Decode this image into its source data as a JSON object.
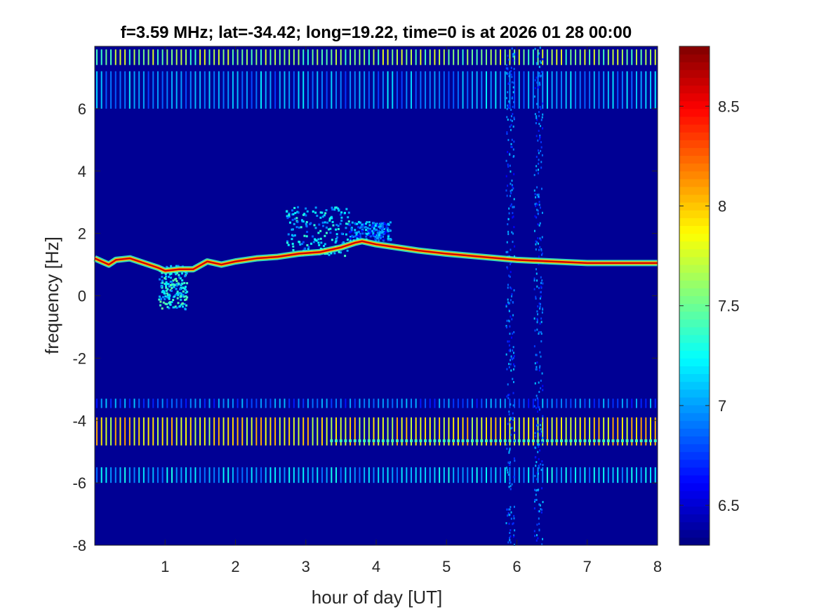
{
  "chart_data": {
    "type": "heatmap",
    "title": "f=3.59 MHz;  lat=-34.42; long=19.22, time=0 is at 2026 01 28 00:00",
    "xlabel": "hour of day [UT]",
    "ylabel": "frequency [Hz]",
    "xlim": [
      0,
      8
    ],
    "ylim": [
      -8,
      8
    ],
    "xticks": [
      1,
      2,
      3,
      4,
      5,
      6,
      7,
      8
    ],
    "xtick_labels": [
      "1",
      "2",
      "3",
      "4",
      "5",
      "6",
      "7",
      "8"
    ],
    "yticks": [
      -8,
      -6,
      -4,
      -2,
      0,
      2,
      4,
      6
    ],
    "ytick_labels": [
      "-8",
      "-6",
      "-4",
      "-2",
      "0",
      "2",
      "4",
      "6"
    ],
    "colorbar": {
      "colormap": "jet",
      "clim": [
        6.3,
        8.8
      ],
      "ticks": [
        6.5,
        7,
        7.5,
        8,
        8.5
      ],
      "tick_labels": [
        "6.5",
        "7",
        "7.5",
        "8",
        "8.5"
      ]
    },
    "background_value": 6.35,
    "main_trace": {
      "x": [
        0.0,
        0.1,
        0.2,
        0.3,
        0.5,
        0.7,
        0.9,
        1.0,
        1.2,
        1.4,
        1.6,
        1.8,
        2.0,
        2.3,
        2.6,
        2.9,
        3.2,
        3.5,
        3.7,
        3.8,
        4.0,
        4.3,
        4.6,
        5.0,
        5.5,
        6.0,
        6.5,
        7.0,
        7.5,
        8.0
      ],
      "y": [
        1.2,
        1.1,
        1.0,
        1.15,
        1.2,
        1.05,
        0.9,
        0.8,
        0.85,
        0.85,
        1.1,
        1.0,
        1.1,
        1.2,
        1.25,
        1.35,
        1.4,
        1.55,
        1.7,
        1.75,
        1.65,
        1.55,
        1.45,
        1.35,
        1.25,
        1.15,
        1.1,
        1.05,
        1.05,
        1.05
      ],
      "value": 8.6
    },
    "spread_regions": [
      {
        "x": [
          0.9,
          1.3
        ],
        "y": [
          -0.4,
          1.0
        ],
        "value": 7.3
      },
      {
        "x": [
          2.7,
          3.6
        ],
        "y": [
          1.3,
          2.9
        ],
        "value": 7.2
      },
      {
        "x": [
          3.6,
          4.2
        ],
        "y": [
          1.8,
          2.4
        ],
        "value": 7.0
      }
    ],
    "vertical_noise_bands": [
      5.9,
      6.3
    ],
    "periodic_lines": {
      "period_hours": 0.0667,
      "bands": [
        {
          "y": [
            7.4,
            7.9
          ],
          "value": 7.6
        },
        {
          "y": [
            6.0,
            7.2
          ],
          "value": 7.0
        },
        {
          "y": [
            -4.8,
            -3.9
          ],
          "value": 7.9
        },
        {
          "y": [
            -6.0,
            -5.5
          ],
          "value": 7.1
        },
        {
          "y": [
            -3.6,
            -3.3
          ],
          "value": 6.9
        }
      ],
      "marker_line": {
        "y": -4.65,
        "x_start": 3.35,
        "value": 7.4
      }
    }
  }
}
